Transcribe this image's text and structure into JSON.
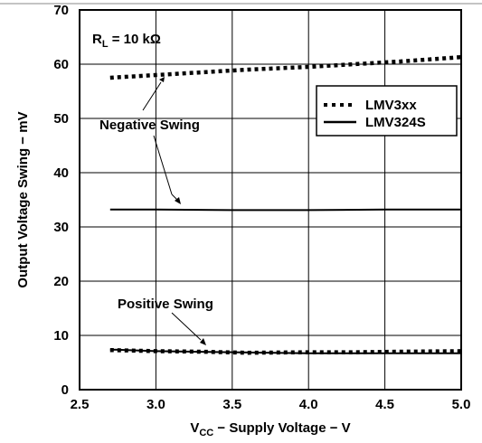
{
  "chart_data": {
    "type": "line",
    "xlabel": {
      "main": "V",
      "sub": "CC",
      "rest": " − Supply Voltage − V"
    },
    "ylabel": "Output Voltage Swing − mV",
    "xlim": [
      2.5,
      5.0
    ],
    "ylim": [
      0,
      70
    ],
    "x_ticks": [
      "2.5",
      "3.0",
      "3.5",
      "4.0",
      "4.5",
      "5.0"
    ],
    "y_ticks": [
      "0",
      "10",
      "20",
      "30",
      "40",
      "50",
      "60",
      "70"
    ],
    "grid": true,
    "legend_position": "top-right",
    "annotations": {
      "rl": {
        "main": "R",
        "sub": "L",
        "rest": " = 10 kΩ"
      },
      "negative": "Negative Swing",
      "positive": "Positive Swing"
    },
    "series": [
      {
        "name": "LMV3xx",
        "group": "negative",
        "style": "dotted",
        "x": [
          2.7,
          3.0,
          3.3,
          3.6,
          4.0,
          4.3,
          4.6,
          5.0
        ],
        "y": [
          57.5,
          58.0,
          58.5,
          59.0,
          59.5,
          60.0,
          60.5,
          61.3
        ]
      },
      {
        "name": "LMV324S",
        "group": "negative",
        "style": "solid",
        "x": [
          2.7,
          3.0,
          3.5,
          4.0,
          4.5,
          5.0
        ],
        "y": [
          33.2,
          33.2,
          33.1,
          33.1,
          33.2,
          33.2
        ]
      },
      {
        "name": "LMV3xx",
        "group": "positive",
        "style": "dotted",
        "x": [
          2.7,
          3.0,
          3.3,
          3.6,
          4.0,
          4.3,
          4.6,
          5.0
        ],
        "y": [
          7.3,
          7.1,
          7.0,
          6.8,
          6.9,
          6.9,
          7.0,
          7.1
        ]
      },
      {
        "name": "LMV324S",
        "group": "positive",
        "style": "solid",
        "x": [
          2.7,
          3.0,
          3.5,
          4.0,
          4.5,
          5.0
        ],
        "y": [
          7.4,
          7.1,
          6.9,
          6.7,
          6.7,
          6.7
        ]
      }
    ],
    "legend": [
      {
        "label": "LMV3xx",
        "style": "dotted"
      },
      {
        "label": "LMV324S",
        "style": "solid"
      }
    ]
  }
}
